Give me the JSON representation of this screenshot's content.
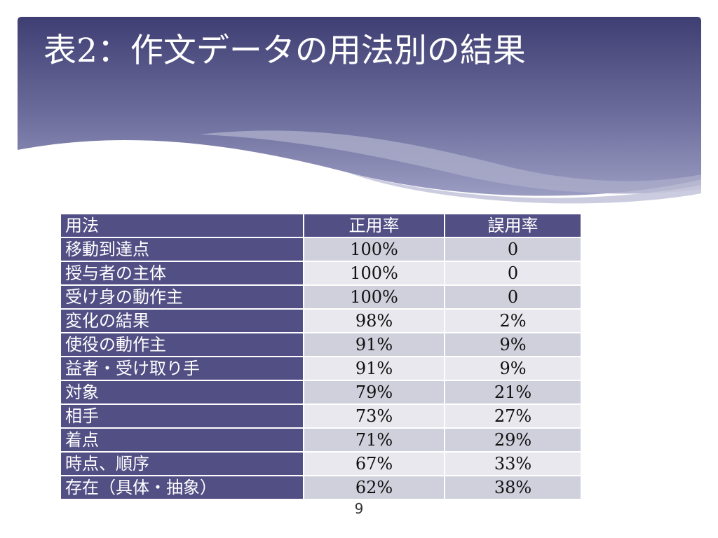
{
  "slide": {
    "title": "表2：作文データの用法別の結果",
    "page_number": "9"
  },
  "table": {
    "headers": [
      "用法",
      "正用率",
      "誤用率"
    ],
    "rows": [
      {
        "usage": "移動到達点",
        "correct": "100%",
        "error": "0"
      },
      {
        "usage": "授与者の主体",
        "correct": "100%",
        "error": "0"
      },
      {
        "usage": "受け身の動作主",
        "correct": "100%",
        "error": "0"
      },
      {
        "usage": "変化の結果",
        "correct": "98%",
        "error": "2%"
      },
      {
        "usage": "使役の動作主",
        "correct": "91%",
        "error": "9%"
      },
      {
        "usage": "益者・受け取り手",
        "correct": "91%",
        "error": "9%"
      },
      {
        "usage": "対象",
        "correct": "79%",
        "error": "21%"
      },
      {
        "usage": "相手",
        "correct": "73%",
        "error": "27%"
      },
      {
        "usage": "着点",
        "correct": "71%",
        "error": "29%"
      },
      {
        "usage": "時点、順序",
        "correct": "67%",
        "error": "33%"
      },
      {
        "usage": "存在（具体・抽象）",
        "correct": "62%",
        "error": "38%"
      }
    ]
  },
  "colors": {
    "header_dark": "#3f3e73",
    "header_light": "#8c8db6",
    "table_header": "#524f85",
    "row_odd": "#cfd0dc",
    "row_even": "#e8e8ee"
  }
}
